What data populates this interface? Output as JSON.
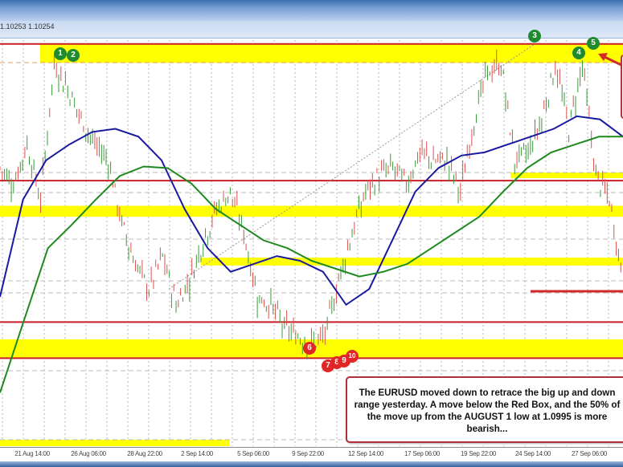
{
  "header": {
    "price_readout": "1.10253 1.10254"
  },
  "colors": {
    "up_candle": "#3a9a3a",
    "down_candle": "#d9534f",
    "ma_blue": "#1a1aa0",
    "ma_green": "#1e8a1e",
    "level_red": "#c81e28",
    "zone_yellow": "#ffff00"
  },
  "chart_data": {
    "type": "line",
    "title": "",
    "xlabel": "",
    "ylabel": "",
    "ylim": [
      1.0944,
      1.1205
    ],
    "grid": true,
    "x_ticks": [
      "21 Aug 14:00",
      "26 Aug 06:00",
      "28 Aug 22:00",
      "2 Sep 14:00",
      "5 Sep 06:00",
      "9 Sep 22:00",
      "12 Sep 14:00",
      "17 Sep 06:00",
      "19 Sep 22:00",
      "24 Sep 14:00",
      "27 Sep 06:00"
    ],
    "series": [
      {
        "key": "price",
        "values": [
          1.1121,
          1.1111,
          1.1136,
          1.1101,
          1.1187,
          1.1172,
          1.1152,
          1.1136,
          1.1126,
          1.1085,
          1.106,
          1.1044,
          1.1065,
          1.1034,
          1.105,
          1.1075,
          1.1095,
          1.1106,
          1.108,
          1.1039,
          1.1034,
          1.1019,
          1.1014,
          1.1009,
          1.1014,
          1.105,
          1.108,
          1.1106,
          1.1116,
          1.1121,
          1.1111,
          1.1131,
          1.1126,
          1.1126,
          1.1106,
          1.1152,
          1.1182,
          1.1187,
          1.1126,
          1.1131,
          1.1152,
          1.1187,
          1.1146,
          1.1187,
          1.1116,
          1.1101,
          1.105
        ]
      },
      {
        "key": "ma_blue",
        "values": [
          1.1039,
          1.1101,
          1.1126,
          1.1136,
          1.1144,
          1.1146,
          1.1141,
          1.1126,
          1.1095,
          1.107,
          1.1055,
          1.106,
          1.1065,
          1.1062,
          1.1055,
          1.1034,
          1.1044,
          1.1075,
          1.1106,
          1.1121,
          1.1129,
          1.1131,
          1.1136,
          1.1141,
          1.1146,
          1.1154,
          1.1152,
          1.1141
        ]
      },
      {
        "key": "ma_green",
        "values": [
          1.0978,
          1.1024,
          1.107,
          1.1085,
          1.1101,
          1.1116,
          1.1122,
          1.1121,
          1.1111,
          1.1095,
          1.1085,
          1.1075,
          1.107,
          1.1062,
          1.1057,
          1.1052,
          1.1055,
          1.106,
          1.107,
          1.108,
          1.109,
          1.1106,
          1.1121,
          1.1131,
          1.1136,
          1.1141,
          1.1141
        ]
      }
    ],
    "levels_red": [
      1.12,
      1.1113,
      1.1023,
      1.1
    ],
    "zones_yellow": [
      [
        1.1188,
        1.12
      ],
      [
        1.109,
        1.1097
      ],
      [
        1.1059,
        1.1064
      ],
      [
        1.1,
        1.1012
      ]
    ],
    "markers_green": [
      "1",
      "2",
      "3",
      "4",
      "5"
    ],
    "markers_red": [
      "6",
      "7",
      "8",
      "9",
      "10"
    ],
    "annotation": "The EURUSD moved down to retrace the big up and down range yesterday. A move below the Red Box, and the 50% of the move up from the AUGUST 1 low at 1.0995 is more bearish..."
  }
}
